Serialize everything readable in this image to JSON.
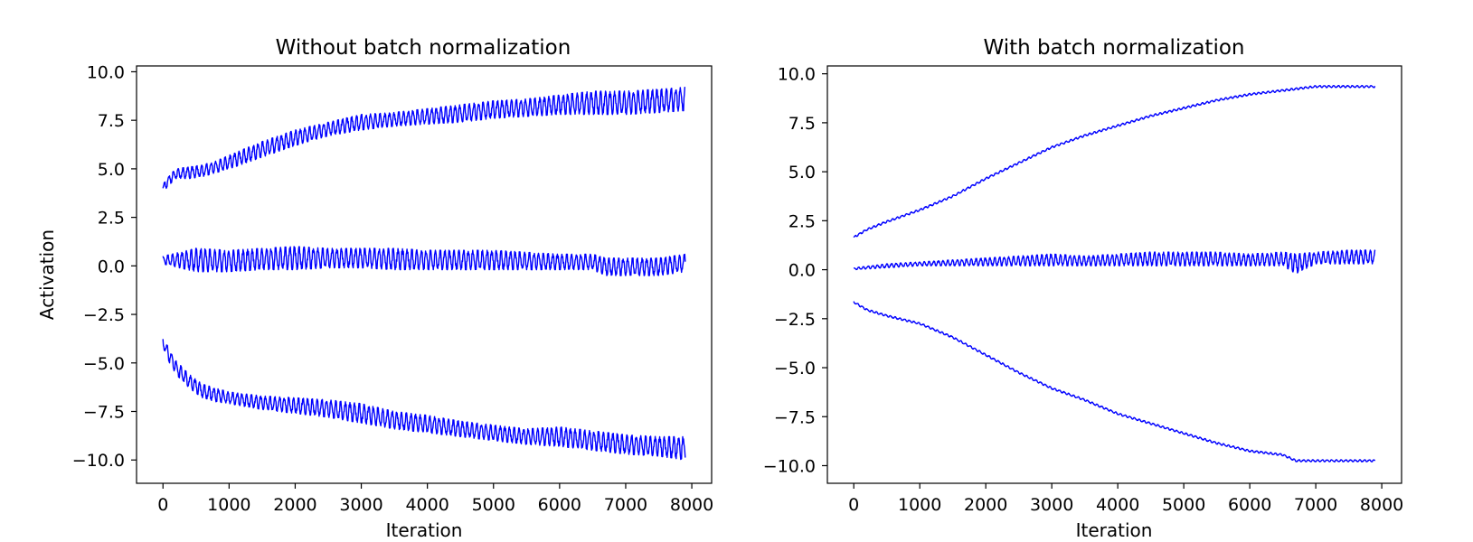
{
  "chart_data": [
    {
      "type": "line",
      "title": "Without batch normalization",
      "xlabel": "Iteration",
      "ylabel": "Activation",
      "xlim": [
        -400,
        8300
      ],
      "ylim": [
        -11.2,
        10.3
      ],
      "xticks": [
        0,
        1000,
        2000,
        3000,
        4000,
        5000,
        6000,
        7000,
        8000
      ],
      "xtick_labels": [
        "0",
        "1000",
        "2000",
        "3000",
        "4000",
        "5000",
        "6000",
        "7000",
        "8000"
      ],
      "yticks": [
        10.0,
        7.5,
        5.0,
        2.5,
        0.0,
        -2.5,
        -5.0,
        -7.5,
        -10.0
      ],
      "ytick_labels": [
        "10.0",
        "7.5",
        "5.0",
        "2.5",
        "0.0",
        "−2.5",
        "−5.0",
        "−7.5",
        "−10.0"
      ],
      "grid": false,
      "color": "#0000ff",
      "series": [
        {
          "x": [
            0,
            100,
            200,
            400,
            600,
            800,
            1000,
            1500,
            2000,
            2500,
            3000,
            3500,
            4000,
            4500,
            5000,
            5500,
            6000,
            6500,
            7000,
            7500,
            7900
          ],
          "y_low": [
            3.8,
            4.2,
            4.5,
            4.5,
            4.6,
            4.8,
            5.0,
            5.6,
            6.2,
            6.7,
            7.0,
            7.2,
            7.3,
            7.4,
            7.6,
            7.7,
            7.8,
            7.8,
            7.8,
            7.9,
            8.0
          ],
          "y_high": [
            4.2,
            4.7,
            5.0,
            5.1,
            5.2,
            5.4,
            5.7,
            6.4,
            7.0,
            7.4,
            7.8,
            7.9,
            8.1,
            8.3,
            8.5,
            8.6,
            8.8,
            9.0,
            9.0,
            9.1,
            9.2
          ]
        },
        {
          "x": [
            0,
            500,
            1000,
            1500,
            2000,
            2500,
            3000,
            3500,
            4000,
            4500,
            5000,
            5500,
            6000,
            6500,
            6700,
            7000,
            7500,
            7900
          ],
          "y_low": [
            0.1,
            -0.3,
            -0.3,
            -0.2,
            -0.2,
            -0.1,
            -0.1,
            -0.2,
            -0.2,
            -0.2,
            -0.2,
            -0.2,
            -0.2,
            -0.2,
            -0.5,
            -0.5,
            -0.5,
            -0.3
          ],
          "y_high": [
            0.5,
            0.9,
            0.8,
            0.9,
            1.0,
            0.9,
            0.9,
            0.9,
            0.8,
            0.8,
            0.8,
            0.7,
            0.6,
            0.6,
            0.4,
            0.4,
            0.4,
            0.6
          ]
        },
        {
          "x": [
            0,
            100,
            200,
            400,
            600,
            800,
            1000,
            1500,
            2000,
            2500,
            3000,
            3500,
            4000,
            4500,
            5000,
            5500,
            6000,
            6500,
            7000,
            7500,
            7900
          ],
          "y_low": [
            -4.2,
            -5.0,
            -5.6,
            -6.3,
            -6.8,
            -7.0,
            -7.1,
            -7.4,
            -7.6,
            -7.8,
            -8.1,
            -8.4,
            -8.6,
            -8.8,
            -9.0,
            -9.2,
            -9.3,
            -9.5,
            -9.7,
            -9.8,
            -10.0
          ],
          "y_high": [
            -3.7,
            -4.3,
            -4.9,
            -5.6,
            -6.1,
            -6.3,
            -6.5,
            -6.7,
            -6.8,
            -6.9,
            -7.1,
            -7.5,
            -7.7,
            -8.0,
            -8.2,
            -8.4,
            -8.3,
            -8.5,
            -8.7,
            -8.8,
            -8.8
          ]
        }
      ]
    },
    {
      "type": "line",
      "title": "With batch normalization",
      "xlabel": "Iteration",
      "ylabel": "",
      "xlim": [
        -400,
        8300
      ],
      "ylim": [
        -10.9,
        10.4
      ],
      "xticks": [
        0,
        1000,
        2000,
        3000,
        4000,
        5000,
        6000,
        7000,
        8000
      ],
      "xtick_labels": [
        "0",
        "1000",
        "2000",
        "3000",
        "4000",
        "5000",
        "6000",
        "7000",
        "8000"
      ],
      "yticks": [
        10.0,
        7.5,
        5.0,
        2.5,
        0.0,
        -2.5,
        -5.0,
        -7.5,
        -10.0
      ],
      "ytick_labels": [
        "10.0",
        "7.5",
        "5.0",
        "2.5",
        "0.0",
        "−2.5",
        "−5.0",
        "−7.5",
        "−10.0"
      ],
      "grid": false,
      "color": "#0000ff",
      "series": [
        {
          "x": [
            0,
            100,
            200,
            500,
            1000,
            1500,
            2000,
            2500,
            3000,
            3500,
            4000,
            4500,
            5000,
            5500,
            6000,
            6500,
            7000,
            7500,
            7900
          ],
          "y_low": [
            1.6,
            1.8,
            2.0,
            2.4,
            3.0,
            3.7,
            4.6,
            5.4,
            6.2,
            6.8,
            7.3,
            7.8,
            8.2,
            8.6,
            8.9,
            9.1,
            9.3,
            9.3,
            9.3
          ],
          "y_high": [
            1.7,
            1.9,
            2.1,
            2.5,
            3.1,
            3.8,
            4.7,
            5.5,
            6.3,
            6.9,
            7.4,
            7.9,
            8.3,
            8.7,
            9.0,
            9.2,
            9.4,
            9.4,
            9.4
          ]
        },
        {
          "x": [
            0,
            500,
            1000,
            1500,
            2000,
            2500,
            3000,
            3500,
            4000,
            4500,
            5000,
            5500,
            6000,
            6500,
            6700,
            7000,
            7500,
            7900
          ],
          "y_low": [
            0.0,
            0.1,
            0.2,
            0.2,
            0.2,
            0.2,
            0.2,
            0.2,
            0.2,
            0.2,
            0.2,
            0.2,
            0.2,
            0.2,
            -0.2,
            0.3,
            0.3,
            0.3
          ],
          "y_high": [
            0.1,
            0.3,
            0.4,
            0.5,
            0.6,
            0.7,
            0.8,
            0.7,
            0.8,
            0.9,
            0.9,
            0.9,
            0.8,
            0.9,
            0.8,
            0.9,
            1.0,
            1.0
          ]
        },
        {
          "x": [
            0,
            100,
            200,
            500,
            1000,
            1500,
            2000,
            2500,
            3000,
            3500,
            4000,
            4500,
            5000,
            5500,
            6000,
            6500,
            6700,
            7000,
            7500,
            7900
          ],
          "y_low": [
            -1.7,
            -1.9,
            -2.1,
            -2.4,
            -2.8,
            -3.5,
            -4.4,
            -5.3,
            -6.1,
            -6.7,
            -7.4,
            -7.9,
            -8.4,
            -8.9,
            -9.3,
            -9.5,
            -9.8,
            -9.8,
            -9.8,
            -9.8
          ],
          "y_high": [
            -1.6,
            -1.8,
            -2.0,
            -2.3,
            -2.7,
            -3.4,
            -4.3,
            -5.2,
            -6.0,
            -6.6,
            -7.3,
            -7.8,
            -8.3,
            -8.8,
            -9.2,
            -9.4,
            -9.7,
            -9.7,
            -9.7,
            -9.7
          ]
        }
      ]
    }
  ]
}
